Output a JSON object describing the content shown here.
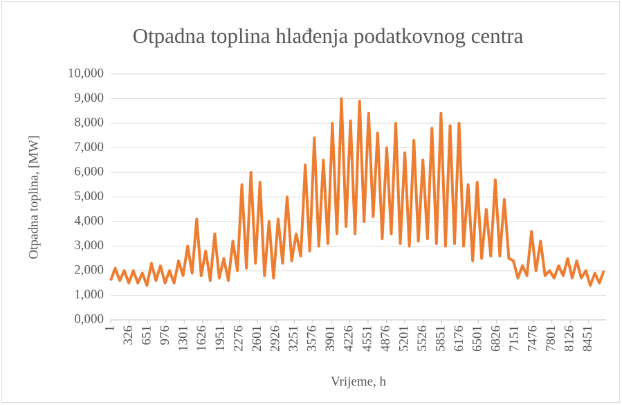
{
  "chart_data": {
    "type": "line",
    "title": "Otpadna toplina hlađenja podatkovnog centra",
    "x_label": "Vrijeme, h",
    "y_label": "Otpadna toplina, [MW]",
    "xlim": [
      1,
      8760
    ],
    "xticks": [
      1,
      326,
      651,
      976,
      1301,
      1626,
      1951,
      2276,
      2601,
      2926,
      3251,
      3576,
      3901,
      4226,
      4551,
      4876,
      5201,
      5526,
      5851,
      6176,
      6501,
      6826,
      7151,
      7476,
      7801,
      8126,
      8451
    ],
    "ylim": [
      0,
      10
    ],
    "yticks": [
      {
        "value": 0,
        "label": "0,000"
      },
      {
        "value": 1,
        "label": "1,000"
      },
      {
        "value": 2,
        "label": "2,000"
      },
      {
        "value": 3,
        "label": "3,000"
      },
      {
        "value": 4,
        "label": "4,000"
      },
      {
        "value": 5,
        "label": "5,000"
      },
      {
        "value": 6,
        "label": "6,000"
      },
      {
        "value": 7,
        "label": "7,000"
      },
      {
        "value": 8,
        "label": "8,000"
      },
      {
        "value": 9,
        "label": "9,000"
      },
      {
        "value": 10,
        "label": "10,000"
      }
    ],
    "grid": true,
    "series": [
      {
        "color": "#ED7D31",
        "x": [
          1,
          81,
          161,
          241,
          321,
          401,
          481,
          561,
          641,
          721,
          801,
          881,
          961,
          1041,
          1121,
          1201,
          1281,
          1361,
          1441,
          1521,
          1601,
          1681,
          1761,
          1841,
          1921,
          2001,
          2081,
          2161,
          2241,
          2321,
          2401,
          2481,
          2561,
          2641,
          2721,
          2801,
          2881,
          2961,
          3041,
          3121,
          3201,
          3281,
          3361,
          3441,
          3521,
          3601,
          3681,
          3761,
          3841,
          3921,
          4001,
          4081,
          4161,
          4241,
          4321,
          4401,
          4481,
          4561,
          4641,
          4721,
          4801,
          4881,
          4961,
          5041,
          5121,
          5201,
          5281,
          5361,
          5441,
          5521,
          5601,
          5681,
          5761,
          5841,
          5921,
          6001,
          6081,
          6161,
          6241,
          6321,
          6401,
          6481,
          6561,
          6641,
          6721,
          6801,
          6881,
          6961,
          7041,
          7121,
          7201,
          7281,
          7361,
          7441,
          7521,
          7601,
          7681,
          7761,
          7841,
          7921,
          8001,
          8081,
          8161,
          8241,
          8321,
          8401,
          8481,
          8561,
          8641,
          8721
        ],
        "values": [
          1.6,
          2.1,
          1.6,
          2.0,
          1.5,
          2.0,
          1.5,
          1.9,
          1.4,
          2.3,
          1.6,
          2.2,
          1.5,
          2.0,
          1.5,
          2.4,
          1.8,
          3.0,
          1.9,
          4.1,
          1.8,
          2.8,
          1.6,
          3.5,
          1.7,
          2.5,
          1.6,
          3.2,
          2.0,
          5.5,
          2.1,
          6.0,
          2.3,
          5.6,
          1.8,
          4.0,
          1.7,
          4.1,
          2.3,
          5.0,
          2.4,
          3.5,
          2.6,
          6.3,
          2.8,
          7.4,
          3.0,
          6.5,
          3.1,
          8.0,
          3.5,
          9.0,
          3.8,
          8.1,
          3.5,
          8.9,
          4.0,
          8.4,
          4.2,
          7.6,
          3.3,
          7.0,
          3.5,
          8.0,
          3.1,
          6.8,
          3.0,
          7.3,
          3.2,
          6.5,
          3.3,
          7.8,
          3.1,
          8.4,
          3.0,
          7.9,
          3.1,
          8.0,
          3.0,
          5.5,
          2.4,
          5.6,
          2.5,
          4.5,
          2.6,
          5.7,
          2.6,
          4.9,
          2.5,
          2.4,
          1.7,
          2.2,
          1.8,
          3.6,
          2.0,
          3.2,
          1.8,
          2.0,
          1.7,
          2.2,
          1.8,
          2.5,
          1.7,
          2.4,
          1.7,
          2.0,
          1.4,
          1.9,
          1.5,
          2.0
        ]
      }
    ]
  }
}
